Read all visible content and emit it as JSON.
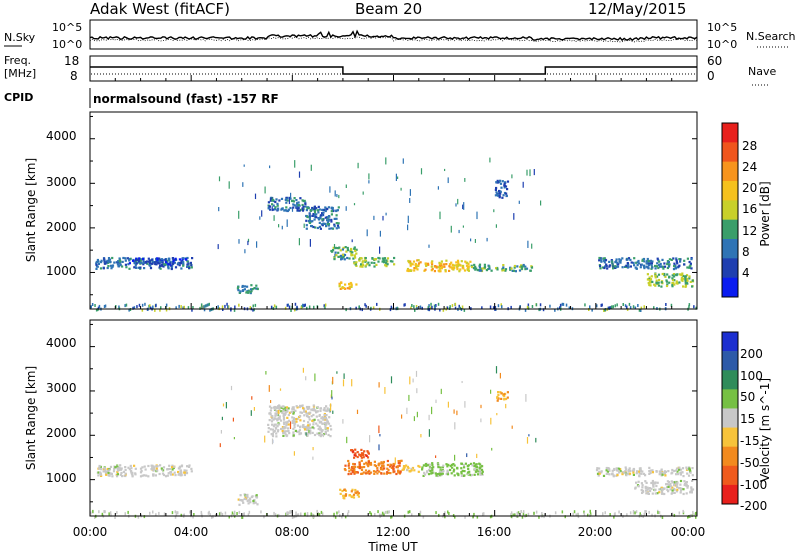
{
  "header": {
    "station": "Adak West (fitACF)",
    "beam": "Beam 20",
    "date": "12/May/2015"
  },
  "noise_panel": {
    "left_label": "N.Sky",
    "right_label": "N.Search",
    "left_ticks": [
      "10^5",
      "10^0"
    ],
    "right_ticks": [
      "10^5",
      "10^0"
    ]
  },
  "freq_panel": {
    "left_label_top": "Freq.",
    "left_label_bottom": "[MHz]",
    "right_label": "Nave",
    "left_ticks": [
      "18",
      "8"
    ],
    "right_ticks": [
      "60",
      "0"
    ]
  },
  "cpid": {
    "label": "CPID",
    "text": "normalsound (fast) -157 RF"
  },
  "x_axis": {
    "label": "Time UT",
    "ticks": [
      "00:00",
      "04:00",
      "08:00",
      "12:00",
      "16:00",
      "20:00",
      "00:00"
    ]
  },
  "power_panel": {
    "ylabel": "Slant Range [km]",
    "yticks": [
      "4000",
      "3000",
      "2000",
      "1000"
    ],
    "colorbar_label": "Power [dB]",
    "colorbar_ticks": [
      "28",
      "24",
      "20",
      "16",
      "12",
      "8",
      "4"
    ],
    "colorbar_colors": [
      "#e8201c",
      "#f0551c",
      "#f7941d",
      "#f5c11e",
      "#c8d02a",
      "#3a9e6a",
      "#2f74b5",
      "#1f3fb0",
      "#0a1cf0"
    ]
  },
  "velocity_panel": {
    "ylabel": "Slant Range [km]",
    "yticks": [
      "4000",
      "3000",
      "2000",
      "1000"
    ],
    "colorbar_label": "Velocity [m s^-1]",
    "colorbar_ticks": [
      "200",
      "100",
      "50",
      "15",
      "-15",
      "-50",
      "-100",
      "-200"
    ],
    "colorbar_colors": [
      "#1c2fd0",
      "#2d5aa8",
      "#2f8c5a",
      "#76c043",
      "#c8c8c8",
      "#f7c33a",
      "#f28a1e",
      "#ef5a1c",
      "#e8201c"
    ]
  },
  "chart_data": [
    {
      "type": "heatmap",
      "title": "Power",
      "xlabel": "Time UT",
      "ylabel": "Slant Range [km]",
      "xlim": [
        0,
        24
      ],
      "ylim": [
        180,
        4600
      ],
      "colorbar": {
        "label": "Power [dB]",
        "range": [
          0,
          32
        ]
      },
      "cells": [
        {
          "t": [
            0.2,
            4.0
          ],
          "r": [
            1100,
            1350
          ],
          "value": 8
        },
        {
          "t": [
            1.5,
            3.8
          ],
          "r": [
            1200,
            1350
          ],
          "value": 4
        },
        {
          "t": [
            5.8,
            6.6
          ],
          "r": [
            550,
            750
          ],
          "value": 10
        },
        {
          "t": [
            7.0,
            8.5
          ],
          "r": [
            2400,
            2700
          ],
          "value": 8
        },
        {
          "t": [
            8.5,
            9.8
          ],
          "r": [
            2000,
            2500
          ],
          "value": 8
        },
        {
          "t": [
            9.5,
            10.5
          ],
          "r": [
            1300,
            1600
          ],
          "value": 12
        },
        {
          "t": [
            9.8,
            10.5
          ],
          "r": [
            650,
            800
          ],
          "value": 20
        },
        {
          "t": [
            10.4,
            12.0
          ],
          "r": [
            1150,
            1350
          ],
          "value": 14
        },
        {
          "t": [
            12.5,
            15.0
          ],
          "r": [
            1050,
            1300
          ],
          "value": 20
        },
        {
          "t": [
            15.0,
            17.5
          ],
          "r": [
            1050,
            1200
          ],
          "value": 12
        },
        {
          "t": [
            16.0,
            16.5
          ],
          "r": [
            2700,
            3100
          ],
          "value": 6
        },
        {
          "t": [
            20.0,
            23.8
          ],
          "r": [
            1100,
            1350
          ],
          "value": 8
        },
        {
          "t": [
            22.0,
            23.8
          ],
          "r": [
            700,
            1000
          ],
          "value": 14
        }
      ]
    },
    {
      "type": "heatmap",
      "title": "Velocity",
      "xlabel": "Time UT",
      "ylabel": "Slant Range [km]",
      "xlim": [
        0,
        24
      ],
      "ylim": [
        180,
        4600
      ],
      "colorbar": {
        "label": "Velocity [m s^-1]",
        "range": [
          -200,
          200
        ]
      },
      "cells": [
        {
          "t": [
            0.2,
            4.0
          ],
          "r": [
            1100,
            1350
          ],
          "value": 0
        },
        {
          "t": [
            5.8,
            6.6
          ],
          "r": [
            450,
            700
          ],
          "value": 0
        },
        {
          "t": [
            7.0,
            9.5
          ],
          "r": [
            2000,
            2700
          ],
          "value": 0
        },
        {
          "t": [
            9.8,
            10.6
          ],
          "r": [
            600,
            800
          ],
          "value": -70
        },
        {
          "t": [
            10.0,
            12.3
          ],
          "r": [
            1150,
            1450
          ],
          "value": -120
        },
        {
          "t": [
            10.2,
            11.0
          ],
          "r": [
            1500,
            1700
          ],
          "value": -150
        },
        {
          "t": [
            12.3,
            13.0
          ],
          "r": [
            1200,
            1350
          ],
          "value": -50
        },
        {
          "t": [
            13.0,
            15.5
          ],
          "r": [
            1100,
            1400
          ],
          "value": 40
        },
        {
          "t": [
            16.0,
            16.5
          ],
          "r": [
            2800,
            3000
          ],
          "value": -60
        },
        {
          "t": [
            20.0,
            23.8
          ],
          "r": [
            1100,
            1300
          ],
          "value": 0
        },
        {
          "t": [
            21.5,
            23.8
          ],
          "r": [
            700,
            1000
          ],
          "value": 0
        }
      ]
    }
  ]
}
